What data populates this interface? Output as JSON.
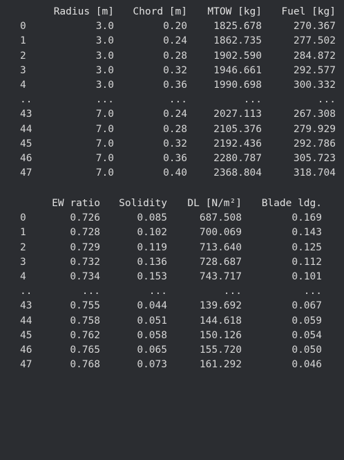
{
  "table1": {
    "columns": [
      "Radius [m]",
      "Chord [m]",
      "MTOW [kg]",
      "Fuel [kg]"
    ],
    "rows": [
      {
        "idx": "0",
        "cells": [
          "3.0",
          "0.20",
          "1825.678",
          "270.367"
        ]
      },
      {
        "idx": "1",
        "cells": [
          "3.0",
          "0.24",
          "1862.735",
          "277.502"
        ]
      },
      {
        "idx": "2",
        "cells": [
          "3.0",
          "0.28",
          "1902.590",
          "284.872"
        ]
      },
      {
        "idx": "3",
        "cells": [
          "3.0",
          "0.32",
          "1946.661",
          "292.577"
        ]
      },
      {
        "idx": "4",
        "cells": [
          "3.0",
          "0.36",
          "1990.698",
          "300.332"
        ]
      },
      {
        "idx": "..",
        "cells": [
          "...",
          "...",
          "...",
          "..."
        ]
      },
      {
        "idx": "43",
        "cells": [
          "7.0",
          "0.24",
          "2027.113",
          "267.308"
        ]
      },
      {
        "idx": "44",
        "cells": [
          "7.0",
          "0.28",
          "2105.376",
          "279.929"
        ]
      },
      {
        "idx": "45",
        "cells": [
          "7.0",
          "0.32",
          "2192.436",
          "292.786"
        ]
      },
      {
        "idx": "46",
        "cells": [
          "7.0",
          "0.36",
          "2280.787",
          "305.723"
        ]
      },
      {
        "idx": "47",
        "cells": [
          "7.0",
          "0.40",
          "2368.804",
          "318.704"
        ]
      }
    ]
  },
  "table2": {
    "columns": [
      "EW ratio",
      "Solidity",
      "DL [N/m²]",
      "Blade ldg."
    ],
    "rows": [
      {
        "idx": "0",
        "cells": [
          "0.726",
          "0.085",
          "687.508",
          "0.169"
        ]
      },
      {
        "idx": "1",
        "cells": [
          "0.728",
          "0.102",
          "700.069",
          "0.143"
        ]
      },
      {
        "idx": "2",
        "cells": [
          "0.729",
          "0.119",
          "713.640",
          "0.125"
        ]
      },
      {
        "idx": "3",
        "cells": [
          "0.732",
          "0.136",
          "728.687",
          "0.112"
        ]
      },
      {
        "idx": "4",
        "cells": [
          "0.734",
          "0.153",
          "743.717",
          "0.101"
        ]
      },
      {
        "idx": "..",
        "cells": [
          "...",
          "...",
          "...",
          "..."
        ]
      },
      {
        "idx": "43",
        "cells": [
          "0.755",
          "0.044",
          "139.692",
          "0.067"
        ]
      },
      {
        "idx": "44",
        "cells": [
          "0.758",
          "0.051",
          "144.618",
          "0.059"
        ]
      },
      {
        "idx": "45",
        "cells": [
          "0.762",
          "0.058",
          "150.126",
          "0.054"
        ]
      },
      {
        "idx": "46",
        "cells": [
          "0.765",
          "0.065",
          "155.720",
          "0.050"
        ]
      },
      {
        "idx": "47",
        "cells": [
          "0.768",
          "0.073",
          "161.292",
          "0.046"
        ]
      }
    ]
  }
}
